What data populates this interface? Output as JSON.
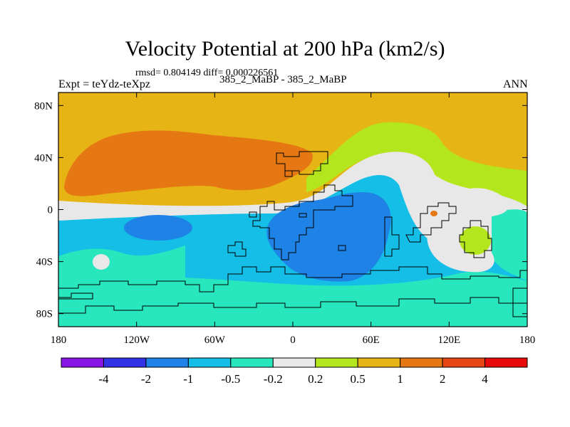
{
  "chart_data": {
    "type": "heatmap",
    "title": "Velocity Potential at 200 hPa (km2/s)",
    "stats": "rmsd= 0.804149 diff= 0.000226561",
    "subtitle_left": "Expt = teYdz-teXpz",
    "subtitle_center": "385_2_MaBP - 385_2_MaBP",
    "subtitle_right": "ANN",
    "xlim": [
      -180,
      180
    ],
    "ylim": [
      -90,
      90
    ],
    "x_ticks": [
      {
        "value": -180,
        "label": "180"
      },
      {
        "value": -120,
        "label": "120W"
      },
      {
        "value": -60,
        "label": "60W"
      },
      {
        "value": 0,
        "label": "0"
      },
      {
        "value": 60,
        "label": "60E"
      },
      {
        "value": 120,
        "label": "120E"
      },
      {
        "value": 180,
        "label": "180"
      }
    ],
    "y_ticks": [
      {
        "value": 80,
        "label": "80N"
      },
      {
        "value": 40,
        "label": "40N"
      },
      {
        "value": 0,
        "label": "0"
      },
      {
        "value": -40,
        "label": "40S"
      },
      {
        "value": -80,
        "label": "80S"
      }
    ],
    "colorbar": {
      "levels": [
        "-4",
        "-2",
        "-1",
        "-0.5",
        "-0.2",
        "0.2",
        "0.5",
        "1",
        "2",
        "4"
      ],
      "colors": [
        "#8a14e6",
        "#3232e6",
        "#1e82e6",
        "#14bee6",
        "#28e6be",
        "#e8e8e8",
        "#b4e61e",
        "#e6b414",
        "#e67814",
        "#e64614",
        "#e60a0a"
      ]
    },
    "regions": [
      {
        "name": "north-background",
        "value_range": "0.5 to 1"
      },
      {
        "name": "subtropical-north",
        "value_range": "-0.2 to 0.2"
      },
      {
        "name": "tropics-south",
        "value_range": "-1 to -0.5"
      },
      {
        "name": "africa-indian-minimum",
        "value_range": "-2 to -1"
      },
      {
        "name": "southern-band",
        "value_range": "-0.5 to -0.2"
      },
      {
        "name": "north-pacific-atlantic-maximum",
        "value_range": "1 to 2"
      },
      {
        "name": "east-asia-band",
        "value_range": "0.2 to 0.5"
      }
    ]
  }
}
